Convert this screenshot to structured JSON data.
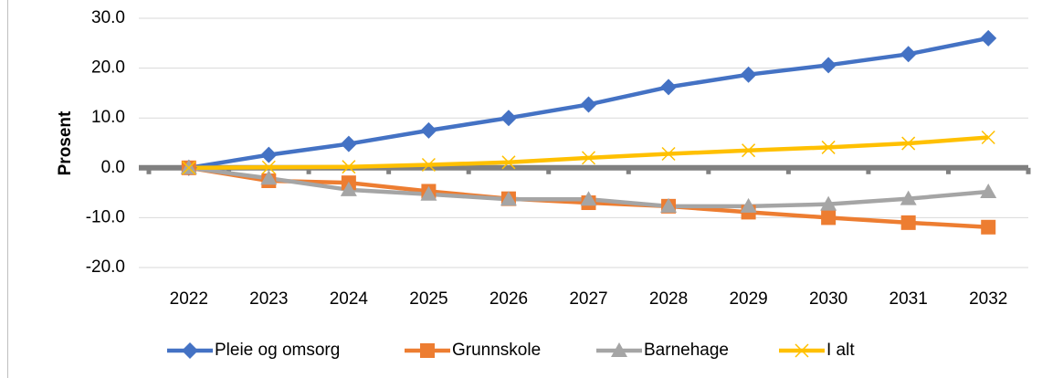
{
  "chart_data": {
    "type": "line",
    "y_label": "Prosent",
    "categories": [
      "2022",
      "2023",
      "2024",
      "2025",
      "2026",
      "2027",
      "2028",
      "2029",
      "2030",
      "2031",
      "2032"
    ],
    "series": [
      {
        "name": "Pleie og omsorg",
        "color": "#4472c4",
        "marker": "diamond",
        "values": [
          0,
          2.6,
          4.8,
          7.5,
          10.0,
          12.7,
          16.2,
          18.7,
          20.6,
          22.8,
          26.0
        ]
      },
      {
        "name": "Grunnskole",
        "color": "#ed7d31",
        "marker": "square",
        "values": [
          0,
          -2.6,
          -3.0,
          -4.7,
          -6.2,
          -7.0,
          -7.7,
          -8.9,
          -10.0,
          -11.0,
          -11.9
        ]
      },
      {
        "name": "Barnehage",
        "color": "#a5a5a5",
        "marker": "triangle",
        "values": [
          0,
          -2.1,
          -4.4,
          -5.3,
          -6.3,
          -6.3,
          -7.7,
          -7.7,
          -7.3,
          -6.2,
          -4.8
        ]
      },
      {
        "name": "I alt",
        "color": "#ffc000",
        "marker": "x",
        "values": [
          0,
          0.1,
          0.2,
          0.6,
          1.1,
          2.0,
          2.8,
          3.5,
          4.1,
          4.9,
          6.1
        ]
      }
    ],
    "ylim": [
      -20,
      30
    ],
    "yticks": [
      {
        "value": -20,
        "label": "-20.0"
      },
      {
        "value": -10,
        "label": "-10.0"
      },
      {
        "value": 0,
        "label": "0.0"
      },
      {
        "value": 10,
        "label": "10.0"
      },
      {
        "value": 20,
        "label": "20.0"
      },
      {
        "value": 30,
        "label": "30.0"
      }
    ],
    "grid": true,
    "legend": "bottom"
  }
}
